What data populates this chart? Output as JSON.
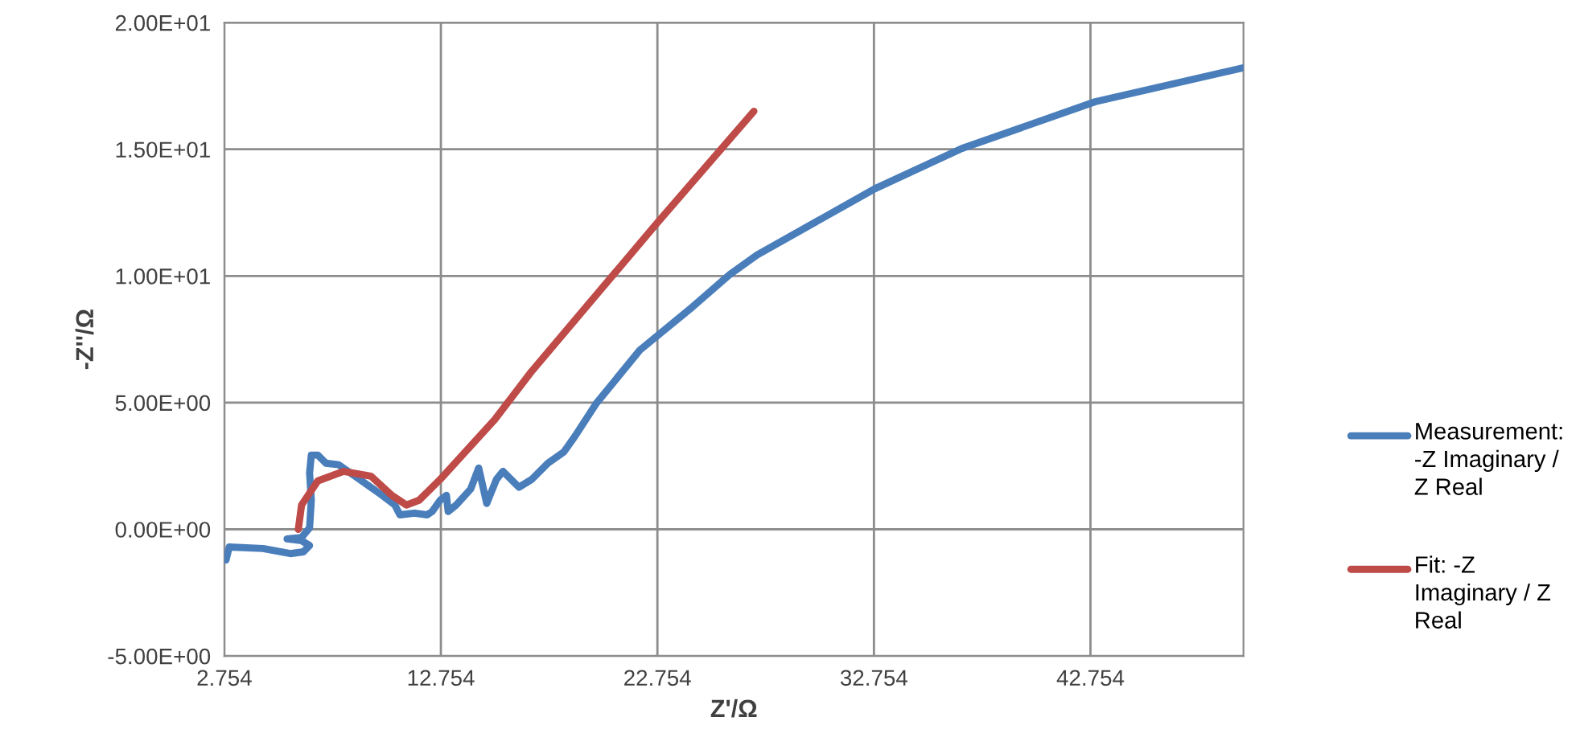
{
  "chart_data": {
    "type": "line",
    "xlabel": "Z'/Ω",
    "ylabel": "-Z''/Ω",
    "xlim": [
      2.754,
      49.82
    ],
    "xticks": [
      2.754,
      12.754,
      22.754,
      32.754,
      42.754
    ],
    "ylim": [
      -5,
      20
    ],
    "yticks": [
      {
        "value": -5,
        "label": "-5.00E+00"
      },
      {
        "value": 0,
        "label": "0.00E+00"
      },
      {
        "value": 5,
        "label": "5.00E+00"
      },
      {
        "value": 10,
        "label": "1.00E+01"
      },
      {
        "value": 15,
        "label": "1.50E+01"
      },
      {
        "value": 20,
        "label": "2.00E+01"
      }
    ],
    "grid": true,
    "legend": "right",
    "marker": "none",
    "line_style": "solid",
    "series": [
      {
        "name": "Measurement: -Z Imaginary / Z Real",
        "color": "#4a7ebb",
        "x": [
          2.83,
          2.98,
          4.54,
          5.8,
          6.4,
          6.69,
          6.32,
          5.65,
          6.32,
          6.69,
          6.77,
          6.69,
          6.77,
          7.07,
          7.44,
          8.03,
          9.0,
          10.04,
          10.63,
          10.86,
          11.53,
          12.12,
          12.35,
          12.72,
          13.01,
          13.09,
          13.46,
          14.13,
          14.5,
          14.72,
          14.87,
          15.32,
          15.62,
          16.36,
          16.95,
          17.7,
          18.44,
          18.96,
          19.93,
          21.94,
          24.39,
          26.1,
          27.36,
          32.79,
          36.81,
          42.98,
          49.82
        ],
        "values": [
          -1.21,
          -0.7,
          -0.76,
          -0.96,
          -0.89,
          -0.64,
          -0.45,
          -0.38,
          -0.32,
          0.06,
          1.15,
          2.23,
          2.93,
          2.93,
          2.61,
          2.55,
          1.97,
          1.34,
          0.96,
          0.57,
          0.64,
          0.57,
          0.7,
          1.15,
          1.34,
          0.7,
          0.96,
          1.59,
          2.42,
          1.59,
          1.02,
          1.97,
          2.29,
          1.66,
          1.97,
          2.61,
          3.06,
          3.69,
          4.97,
          7.07,
          8.79,
          10.06,
          10.83,
          13.44,
          15.03,
          16.88,
          18.22
        ]
      },
      {
        "name": "Fit: -Z Imaginary / Z Real",
        "color": "#be4b48",
        "x": [
          6.17,
          6.32,
          7.07,
          8.26,
          9.52,
          10.49,
          11.16,
          11.75,
          12.72,
          15.24,
          16.95,
          22.75,
          27.21
        ],
        "values": [
          0.0,
          0.96,
          1.91,
          2.29,
          2.1,
          1.34,
          0.96,
          1.15,
          1.97,
          4.33,
          6.24,
          12.1,
          16.5
        ]
      }
    ]
  }
}
